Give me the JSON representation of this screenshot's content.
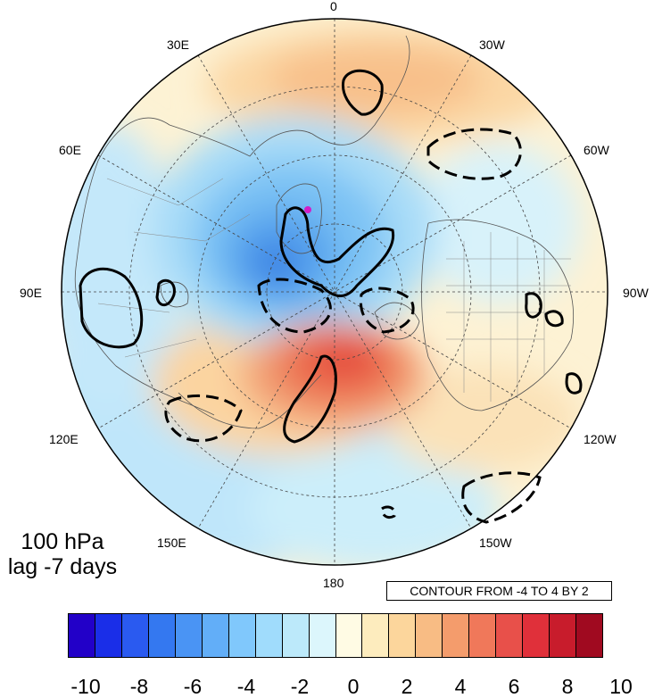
{
  "map": {
    "projection": "north-polar-stereographic",
    "longitude_labels": {
      "top": "0",
      "upper_left": "30E",
      "upper_right": "30W",
      "mid_upper_left": "60E",
      "mid_upper_right": "60W",
      "left": "90E",
      "right": "90W",
      "lower_left": "120E",
      "lower_right": "120W",
      "bottom_left": "150E",
      "bottom_right": "150W",
      "bottom": "180"
    },
    "level_label": "100 hPa",
    "lag_label": "lag -7 days",
    "contour_info": "CONTOUR FROM -4 TO 4 BY 2",
    "marker_color": "#d21ec8"
  },
  "colorbar": {
    "ticks": [
      "-10",
      "-8",
      "-6",
      "-4",
      "-2",
      "0",
      "2",
      "4",
      "6",
      "8",
      "10"
    ],
    "colors": [
      "#2200c8",
      "#1a2ee8",
      "#2a5af0",
      "#3478f0",
      "#4a94f4",
      "#62aef8",
      "#80c8fc",
      "#a0dcfc",
      "#bce9fa",
      "#dcf6fc",
      "#fffbe4",
      "#fdecbe",
      "#fcd69c",
      "#f8bc84",
      "#f49c6c",
      "#f0785a",
      "#e8504a",
      "#e0303a",
      "#c81c2c",
      "#a00a20"
    ]
  }
}
